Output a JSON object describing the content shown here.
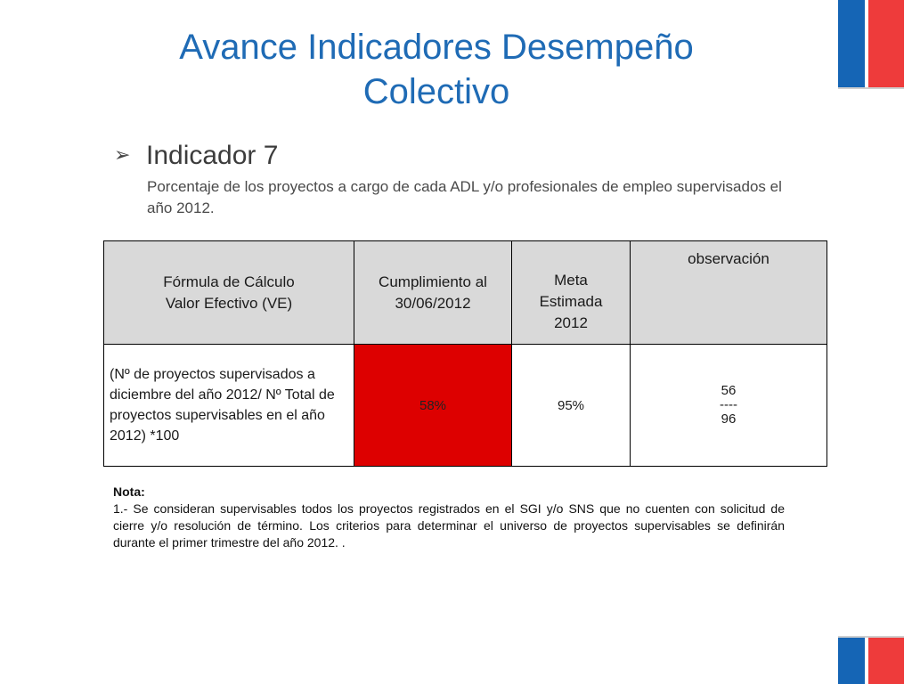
{
  "title_line1": "Avance Indicadores Desempeño",
  "title_line2": "Colectivo",
  "bullet": {
    "icon": "arrow-bullet-icon",
    "label": "Indicador 7"
  },
  "description": "Porcentaje de los  proyectos a cargo de cada ADL y/o profesionales de empleo supervisados el año 2012.",
  "table": {
    "headers": {
      "formula_line1": "Fórmula de Cálculo",
      "formula_line2": "Valor Efectivo  (VE)",
      "cumplimiento_line1": "Cumplimiento al",
      "cumplimiento_line2": "30/06/2012",
      "meta_line1": "Meta",
      "meta_line2": "Estimada",
      "meta_line3": "2012",
      "observacion": "observación"
    },
    "row": {
      "formula": "(Nº de proyectos supervisados a diciembre del  año 2012/ Nº Total de proyectos supervisables en el año 2012) *100",
      "cumplimiento": "58%",
      "meta": "95%",
      "obs_numerator": "56",
      "obs_divider": "----",
      "obs_denominator": "96"
    },
    "highlight_color": "#dd0000"
  },
  "note": {
    "heading": "Nota:",
    "text": "1.-   Se consideran  supervisables todos los proyectos registrados en el SGI y/o SNS que no cuenten con solicitud de cierre y/o resolución de término. Los criterios para determinar el universo de proyectos supervisables se definirán durante el primer trimestre del año 2012. ."
  },
  "colors": {
    "title": "#1f6bb5",
    "flag_blue": "#1565b5",
    "flag_red": "#ee3b3b"
  }
}
